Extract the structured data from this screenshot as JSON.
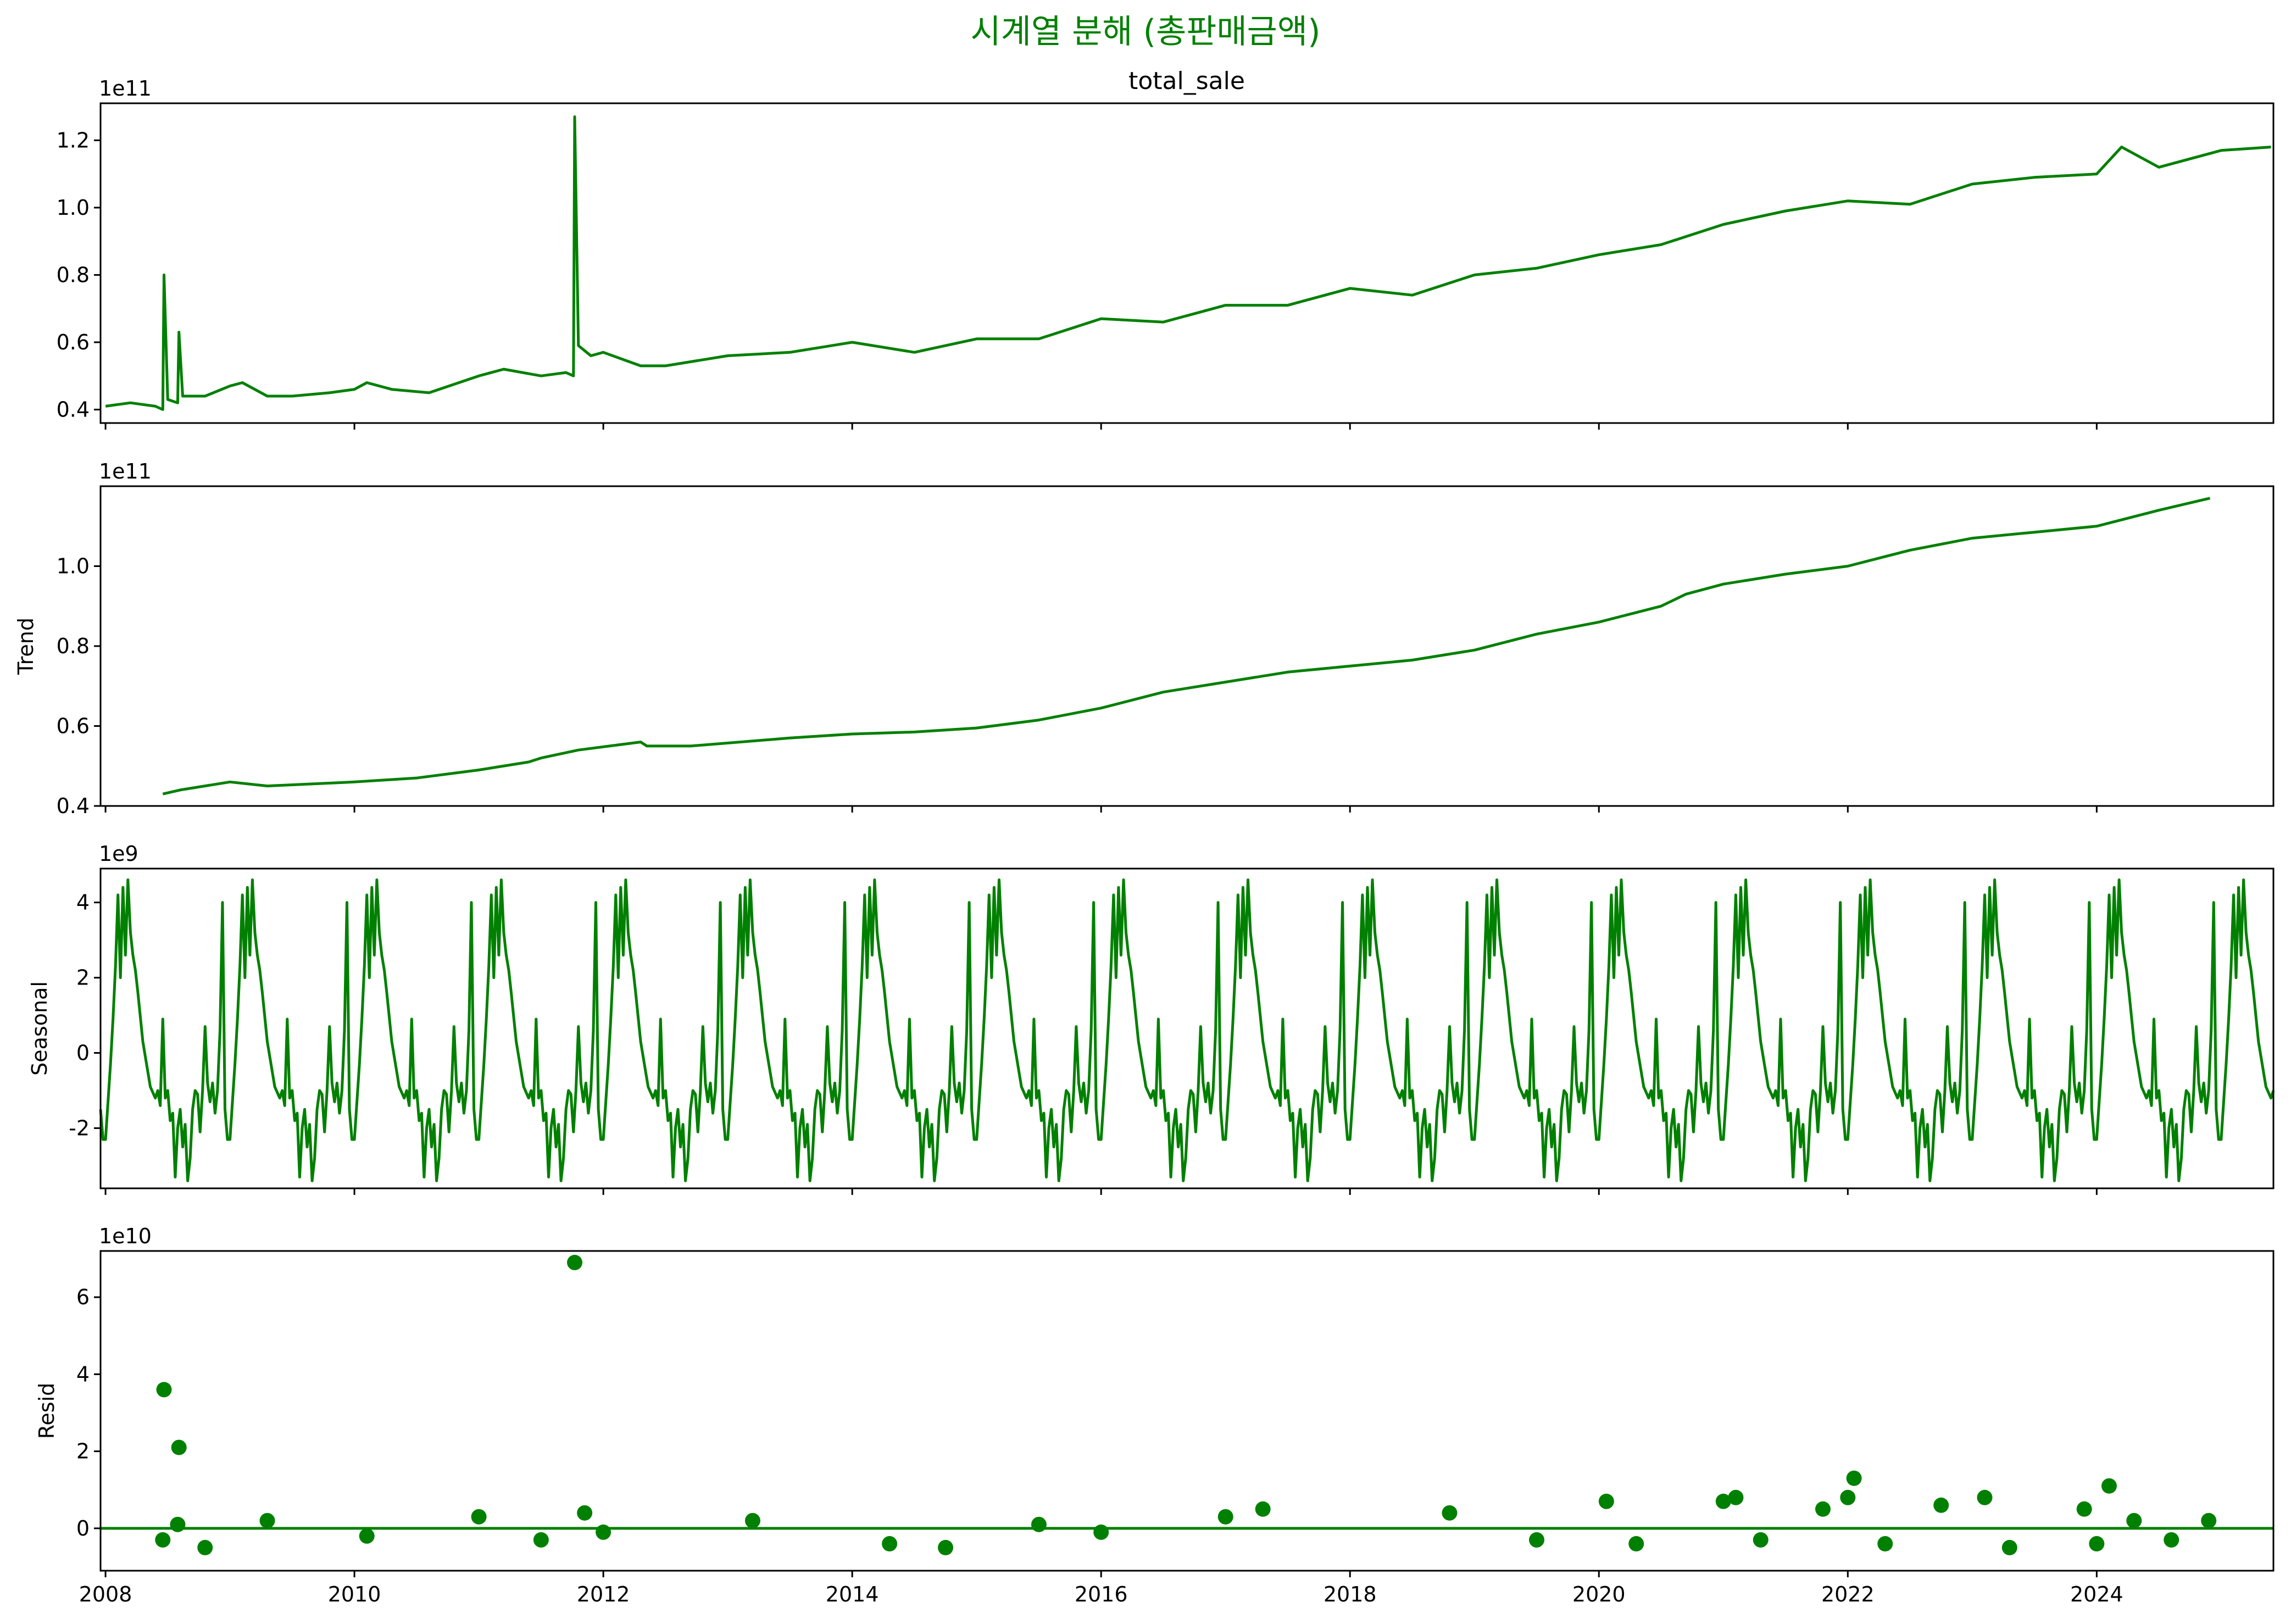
{
  "figure": {
    "suptitle": "시계열 분해 (총판매금액)",
    "colors": {
      "series": "#008000",
      "axes": "#000000",
      "background": "#ffffff"
    }
  },
  "chart_data": [
    {
      "type": "line",
      "title": "total_sale",
      "ylabel": "",
      "offset_text": "1e11",
      "y_scale": 100000000000.0,
      "xlim": [
        2007.96,
        2025.42
      ],
      "ylim": [
        0.36,
        1.31
      ],
      "yticks": [
        0.4,
        0.6,
        0.8,
        1.0,
        1.2
      ],
      "ytick_labels": [
        "0.4",
        "0.6",
        "0.8",
        "1.0",
        "1.2"
      ],
      "x_tick_labels_shown": false,
      "approx_weekly_points": true,
      "x": [
        2008.0,
        2008.2,
        2008.4,
        2008.46,
        2008.47,
        2008.5,
        2008.58,
        2008.59,
        2008.62,
        2008.8,
        2009.0,
        2009.1,
        2009.3,
        2009.5,
        2009.8,
        2010.0,
        2010.1,
        2010.3,
        2010.6,
        2011.0,
        2011.2,
        2011.5,
        2011.7,
        2011.76,
        2011.77,
        2011.8,
        2011.9,
        2012.0,
        2012.3,
        2012.5,
        2013.0,
        2013.5,
        2014.0,
        2014.5,
        2015.0,
        2015.5,
        2016.0,
        2016.5,
        2017.0,
        2017.5,
        2018.0,
        2018.5,
        2019.0,
        2019.5,
        2020.0,
        2020.5,
        2021.0,
        2021.5,
        2022.0,
        2022.5,
        2023.0,
        2023.5,
        2024.0,
        2024.2,
        2024.5,
        2025.0,
        2025.4
      ],
      "values": [
        0.41,
        0.42,
        0.41,
        0.4,
        0.8,
        0.43,
        0.42,
        0.63,
        0.44,
        0.44,
        0.47,
        0.48,
        0.44,
        0.44,
        0.45,
        0.46,
        0.48,
        0.46,
        0.45,
        0.5,
        0.52,
        0.5,
        0.51,
        0.5,
        1.27,
        0.59,
        0.56,
        0.57,
        0.53,
        0.53,
        0.56,
        0.57,
        0.6,
        0.57,
        0.61,
        0.61,
        0.67,
        0.66,
        0.71,
        0.71,
        0.76,
        0.74,
        0.8,
        0.82,
        0.86,
        0.89,
        0.95,
        0.99,
        1.02,
        1.01,
        1.07,
        1.09,
        1.1,
        1.18,
        1.12,
        1.17,
        1.18
      ]
    },
    {
      "type": "line",
      "title": "",
      "ylabel": "Trend",
      "offset_text": "1e11",
      "y_scale": 100000000000.0,
      "xlim": [
        2007.96,
        2025.42
      ],
      "ylim": [
        0.4,
        1.2
      ],
      "yticks": [
        0.4,
        0.6,
        0.8,
        1.0
      ],
      "ytick_labels": [
        "0.4",
        "0.6",
        "0.8",
        "1.0"
      ],
      "x_tick_labels_shown": false,
      "x": [
        2008.46,
        2008.6,
        2009.0,
        2009.3,
        2010.0,
        2010.5,
        2011.0,
        2011.4,
        2011.5,
        2011.8,
        2012.3,
        2012.35,
        2012.7,
        2013.5,
        2014.0,
        2014.5,
        2015.0,
        2015.5,
        2016.0,
        2016.5,
        2017.0,
        2017.5,
        2018.0,
        2018.5,
        2019.0,
        2019.5,
        2020.0,
        2020.5,
        2020.7,
        2021.0,
        2021.5,
        2022.0,
        2022.5,
        2023.0,
        2023.5,
        2024.0,
        2024.5,
        2024.91
      ],
      "values": [
        0.43,
        0.44,
        0.46,
        0.45,
        0.46,
        0.47,
        0.49,
        0.51,
        0.52,
        0.54,
        0.56,
        0.55,
        0.55,
        0.57,
        0.58,
        0.585,
        0.595,
        0.615,
        0.645,
        0.685,
        0.71,
        0.735,
        0.75,
        0.765,
        0.79,
        0.83,
        0.86,
        0.9,
        0.93,
        0.955,
        0.98,
        1.0,
        1.04,
        1.07,
        1.085,
        1.1,
        1.14,
        1.17
      ]
    },
    {
      "type": "line",
      "title": "",
      "ylabel": "Seasonal",
      "offset_text": "1e9",
      "y_scale": 1000000000.0,
      "xlim": [
        2007.96,
        2025.42
      ],
      "ylim": [
        -3.6,
        4.9
      ],
      "yticks": [
        -2,
        0,
        2,
        4
      ],
      "ytick_labels": [
        "-2",
        "0",
        "2",
        "4"
      ],
      "x_tick_labels_shown": false,
      "period_years": 1,
      "one_year_pattern": {
        "phase": [
          0.0,
          0.04,
          0.06,
          0.08,
          0.1,
          0.12,
          0.14,
          0.16,
          0.18,
          0.2,
          0.22,
          0.24,
          0.26,
          0.3,
          0.36,
          0.4,
          0.42,
          0.44,
          0.46,
          0.48,
          0.5,
          0.52,
          0.54,
          0.56,
          0.58,
          0.6,
          0.62,
          0.64,
          0.66,
          0.68,
          0.7,
          0.72,
          0.74,
          0.76,
          0.78,
          0.8,
          0.82,
          0.84,
          0.86,
          0.88,
          0.9,
          0.92,
          0.94,
          0.96,
          0.98,
          1.0
        ],
        "values": [
          -2.3,
          -0.3,
          0.9,
          2.3,
          4.2,
          2.0,
          4.4,
          2.6,
          4.6,
          3.2,
          2.6,
          2.2,
          1.6,
          0.3,
          -0.9,
          -1.2,
          -1.0,
          -1.4,
          0.9,
          -1.2,
          -1.0,
          -1.8,
          -1.6,
          -3.3,
          -2.0,
          -1.5,
          -2.5,
          -1.9,
          -3.4,
          -2.8,
          -1.5,
          -1.0,
          -1.1,
          -2.1,
          -1.0,
          0.7,
          -0.8,
          -1.3,
          -0.8,
          -1.6,
          -1.0,
          0.6,
          4.0,
          -1.5,
          -2.3,
          -2.3
        ]
      }
    },
    {
      "type": "scatter",
      "title": "",
      "ylabel": "Resid",
      "offset_text": "1e10",
      "y_scale": 10000000000.0,
      "xlim": [
        2007.96,
        2025.42
      ],
      "ylim": [
        -1.1,
        7.2
      ],
      "yticks": [
        0,
        2,
        4,
        6
      ],
      "ytick_labels": [
        "0",
        "2",
        "4",
        "6"
      ],
      "xticks": [
        2008,
        2010,
        2012,
        2014,
        2016,
        2018,
        2020,
        2022,
        2024
      ],
      "xtick_labels": [
        "2008",
        "2010",
        "2012",
        "2014",
        "2016",
        "2018",
        "2020",
        "2022",
        "2024"
      ],
      "zero_line": true,
      "x": [
        2008.46,
        2008.47,
        2008.58,
        2008.59,
        2008.8,
        2009.3,
        2010.1,
        2011.0,
        2011.5,
        2011.77,
        2011.85,
        2012.0,
        2013.2,
        2014.3,
        2014.75,
        2015.5,
        2016.0,
        2017.0,
        2017.3,
        2018.8,
        2019.5,
        2020.06,
        2020.3,
        2021.0,
        2021.1,
        2021.3,
        2021.8,
        2022.0,
        2022.05,
        2022.3,
        2022.75,
        2023.1,
        2023.3,
        2023.9,
        2024.0,
        2024.1,
        2024.3,
        2024.6,
        2024.9
      ],
      "values": [
        -0.3,
        3.6,
        0.1,
        2.1,
        -0.5,
        0.2,
        -0.2,
        0.3,
        -0.3,
        6.9,
        0.4,
        -0.1,
        0.2,
        -0.4,
        -0.5,
        0.1,
        -0.1,
        0.3,
        0.5,
        0.4,
        -0.3,
        0.7,
        -0.4,
        0.7,
        0.8,
        -0.3,
        0.5,
        0.8,
        1.3,
        -0.4,
        0.6,
        0.8,
        -0.5,
        0.5,
        -0.4,
        1.1,
        0.2,
        -0.3,
        0.2
      ]
    }
  ]
}
